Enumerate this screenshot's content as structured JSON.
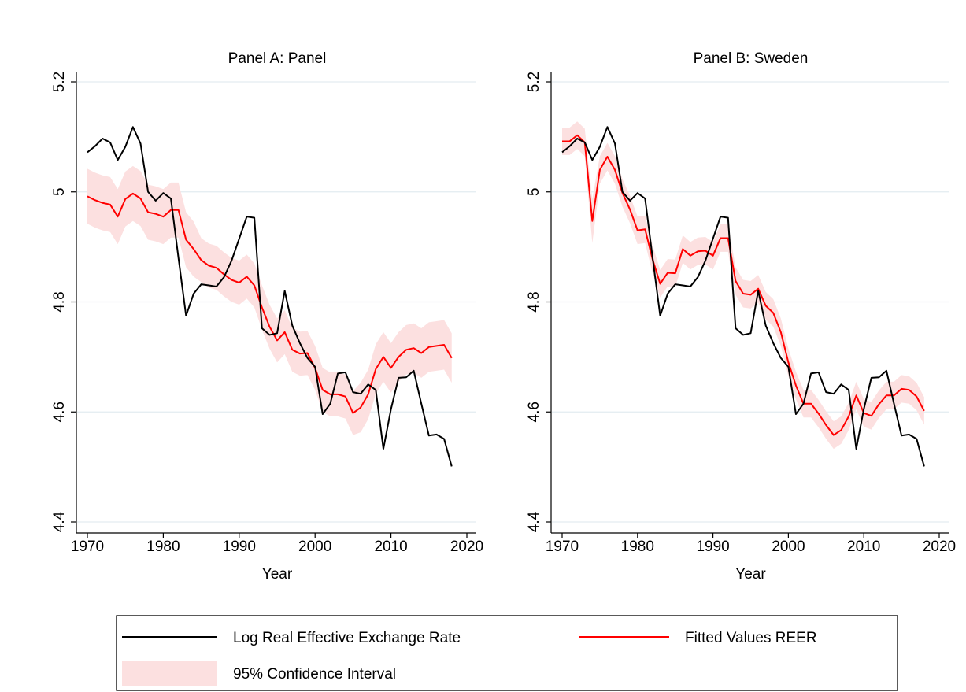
{
  "chart_data": [
    {
      "type": "line",
      "title": "Panel A: Panel",
      "x_label": "Year",
      "x": [
        1970,
        1971,
        1972,
        1973,
        1974,
        1975,
        1976,
        1977,
        1978,
        1979,
        1980,
        1981,
        1982,
        1983,
        1984,
        1985,
        1986,
        1987,
        1988,
        1989,
        1990,
        1991,
        1992,
        1993,
        1994,
        1995,
        1996,
        1997,
        1998,
        1999,
        2000,
        2001,
        2002,
        2003,
        2004,
        2005,
        2006,
        2007,
        2008,
        2009,
        2010,
        2011,
        2012,
        2013,
        2014,
        2015,
        2016,
        2017,
        2018
      ],
      "series": [
        {
          "name": "Log Real Effective Exchange Rate",
          "color": "#000000",
          "values": [
            5.072,
            5.083,
            5.097,
            5.09,
            5.058,
            5.082,
            5.118,
            5.088,
            5.0,
            4.984,
            4.998,
            4.988,
            4.88,
            4.775,
            4.815,
            4.832,
            4.83,
            4.828,
            4.845,
            4.875,
            4.915,
            4.955,
            4.953,
            4.752,
            4.74,
            4.743,
            4.82,
            4.757,
            4.725,
            4.698,
            4.682,
            4.596,
            4.615,
            4.67,
            4.672,
            4.636,
            4.633,
            4.65,
            4.64,
            4.533,
            4.605,
            4.662,
            4.663,
            4.675,
            4.615,
            4.557,
            4.559,
            4.551,
            4.501
          ]
        },
        {
          "name": "Fitted Values REER",
          "color": "#ff0000",
          "values": [
            4.992,
            4.985,
            4.98,
            4.977,
            4.955,
            4.987,
            4.997,
            4.988,
            4.963,
            4.96,
            4.955,
            4.967,
            4.967,
            4.913,
            4.896,
            4.876,
            4.866,
            4.862,
            4.85,
            4.84,
            4.835,
            4.846,
            4.83,
            4.79,
            4.755,
            4.73,
            4.745,
            4.713,
            4.706,
            4.707,
            4.68,
            4.64,
            4.632,
            4.632,
            4.628,
            4.598,
            4.608,
            4.632,
            4.678,
            4.7,
            4.68,
            4.7,
            4.713,
            4.716,
            4.707,
            4.718,
            4.72,
            4.722,
            4.698
          ]
        }
      ],
      "band": {
        "name": "95% Confidence Interval",
        "color": "#fce0e0",
        "lower": [
          4.942,
          4.935,
          4.93,
          4.927,
          4.905,
          4.937,
          4.947,
          4.938,
          4.913,
          4.91,
          4.905,
          4.917,
          4.917,
          4.863,
          4.846,
          4.836,
          4.826,
          4.822,
          4.81,
          4.8,
          4.795,
          4.806,
          4.79,
          4.75,
          4.715,
          4.69,
          4.705,
          4.673,
          4.666,
          4.667,
          4.64,
          4.6,
          4.592,
          4.592,
          4.588,
          4.558,
          4.563,
          4.587,
          4.633,
          4.655,
          4.635,
          4.655,
          4.668,
          4.671,
          4.662,
          4.673,
          4.675,
          4.677,
          4.653
        ],
        "upper": [
          5.042,
          5.035,
          5.03,
          5.027,
          5.005,
          5.037,
          5.047,
          5.038,
          5.013,
          5.01,
          5.005,
          5.017,
          5.017,
          4.963,
          4.946,
          4.916,
          4.906,
          4.902,
          4.89,
          4.88,
          4.875,
          4.886,
          4.87,
          4.83,
          4.795,
          4.77,
          4.785,
          4.753,
          4.746,
          4.747,
          4.72,
          4.68,
          4.672,
          4.672,
          4.668,
          4.638,
          4.653,
          4.677,
          4.723,
          4.745,
          4.725,
          4.745,
          4.758,
          4.761,
          4.752,
          4.763,
          4.765,
          4.767,
          4.743
        ]
      },
      "xlim": [
        1970,
        2020
      ],
      "xticks": [
        1970,
        1980,
        1990,
        2000,
        2010,
        2020
      ],
      "ylim": [
        4.4,
        5.2
      ],
      "yticks": [
        4.4,
        4.6,
        4.8,
        5,
        5.2
      ],
      "grid": true
    },
    {
      "type": "line",
      "title": "Panel B: Sweden",
      "x_label": "Year",
      "x": [
        1970,
        1971,
        1972,
        1973,
        1974,
        1975,
        1976,
        1977,
        1978,
        1979,
        1980,
        1981,
        1982,
        1983,
        1984,
        1985,
        1986,
        1987,
        1988,
        1989,
        1990,
        1991,
        1992,
        1993,
        1994,
        1995,
        1996,
        1997,
        1998,
        1999,
        2000,
        2001,
        2002,
        2003,
        2004,
        2005,
        2006,
        2007,
        2008,
        2009,
        2010,
        2011,
        2012,
        2013,
        2014,
        2015,
        2016,
        2017,
        2018
      ],
      "series": [
        {
          "color": "#000000",
          "values": [
            5.072,
            5.083,
            5.097,
            5.09,
            5.058,
            5.082,
            5.118,
            5.088,
            5.0,
            4.984,
            4.998,
            4.988,
            4.88,
            4.775,
            4.815,
            4.832,
            4.83,
            4.828,
            4.845,
            4.875,
            4.915,
            4.955,
            4.953,
            4.752,
            4.74,
            4.743,
            4.82,
            4.757,
            4.725,
            4.698,
            4.682,
            4.596,
            4.615,
            4.67,
            4.672,
            4.636,
            4.633,
            4.65,
            4.64,
            4.533,
            4.605,
            4.662,
            4.663,
            4.675,
            4.615,
            4.557,
            4.559,
            4.551,
            4.501
          ]
        },
        {
          "color": "#ff0000",
          "values": [
            5.092,
            5.092,
            5.103,
            5.09,
            4.947,
            5.04,
            5.064,
            5.04,
            4.998,
            4.968,
            4.93,
            4.932,
            4.877,
            4.833,
            4.853,
            4.852,
            4.896,
            4.884,
            4.892,
            4.893,
            4.884,
            4.916,
            4.916,
            4.838,
            4.815,
            4.813,
            4.824,
            4.793,
            4.78,
            4.745,
            4.69,
            4.648,
            4.615,
            4.615,
            4.597,
            4.576,
            4.558,
            4.567,
            4.592,
            4.63,
            4.598,
            4.593,
            4.614,
            4.63,
            4.63,
            4.642,
            4.64,
            4.628,
            4.602
          ]
        }
      ],
      "band": {
        "color": "#fce0e0",
        "lower": [
          5.067,
          5.067,
          5.078,
          5.065,
          4.907,
          5.015,
          5.039,
          5.015,
          4.973,
          4.943,
          4.905,
          4.907,
          4.852,
          4.808,
          4.828,
          4.827,
          4.871,
          4.859,
          4.867,
          4.868,
          4.859,
          4.891,
          4.891,
          4.813,
          4.79,
          4.788,
          4.799,
          4.768,
          4.755,
          4.72,
          4.665,
          4.623,
          4.59,
          4.59,
          4.572,
          4.551,
          4.533,
          4.542,
          4.567,
          4.605,
          4.573,
          4.568,
          4.589,
          4.605,
          4.605,
          4.617,
          4.615,
          4.603,
          4.577
        ],
        "upper": [
          5.117,
          5.117,
          5.128,
          5.115,
          4.987,
          5.065,
          5.089,
          5.065,
          5.023,
          4.993,
          4.955,
          4.957,
          4.902,
          4.858,
          4.878,
          4.877,
          4.921,
          4.909,
          4.917,
          4.918,
          4.909,
          4.941,
          4.941,
          4.863,
          4.84,
          4.838,
          4.849,
          4.818,
          4.805,
          4.77,
          4.715,
          4.673,
          4.64,
          4.64,
          4.622,
          4.601,
          4.583,
          4.592,
          4.617,
          4.655,
          4.623,
          4.618,
          4.639,
          4.655,
          4.655,
          4.667,
          4.665,
          4.653,
          4.627
        ]
      },
      "xlim": [
        1970,
        2020
      ],
      "xticks": [
        1970,
        1980,
        1990,
        2000,
        2010,
        2020
      ],
      "ylim": [
        4.4,
        5.2
      ],
      "yticks": [
        4.4,
        4.6,
        4.8,
        5,
        5.2
      ],
      "grid": true
    }
  ]
}
